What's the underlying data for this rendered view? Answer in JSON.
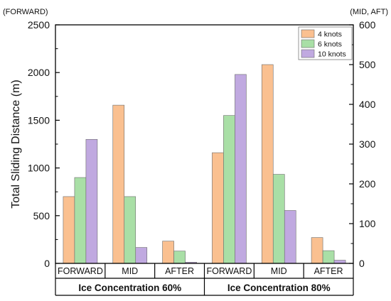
{
  "chart_data": {
    "type": "bar",
    "ylabel": "Total Sliding Distance (m)",
    "left_axis_unit": "(FORWARD)",
    "right_axis_unit": "(MID, AFT)",
    "left_ylim": [
      0,
      2500
    ],
    "left_ticks": [
      0,
      500,
      1000,
      1500,
      2000,
      2500
    ],
    "right_ylim": [
      0,
      600
    ],
    "right_ticks": [
      0,
      100,
      200,
      300,
      400,
      500,
      600
    ],
    "legend_position": "top-right",
    "series": [
      {
        "name": "4 knots",
        "color": "#FAC090"
      },
      {
        "name": "6 knots",
        "color": "#A9DFA6"
      },
      {
        "name": "10 knots",
        "color": "#C0A9E0"
      }
    ],
    "groups": [
      {
        "label": "Ice Concentration 60%",
        "categories": [
          {
            "label": "FORWARD",
            "axis": "left",
            "values": [
              700,
              900,
              1300
            ]
          },
          {
            "label": "MID",
            "axis": "right",
            "values": [
              398,
              168,
              40
            ]
          },
          {
            "label": "AFTER",
            "axis": "right",
            "values": [
              56,
              31,
              3
            ]
          }
        ]
      },
      {
        "label": "Ice Concentration 80%",
        "categories": [
          {
            "label": "FORWARD",
            "axis": "left",
            "values": [
              1160,
              1550,
              1980
            ]
          },
          {
            "label": "MID",
            "axis": "right",
            "values": [
              500,
              224,
              133
            ]
          },
          {
            "label": "AFTER",
            "axis": "right",
            "values": [
              65,
              32,
              8
            ]
          }
        ]
      }
    ]
  }
}
